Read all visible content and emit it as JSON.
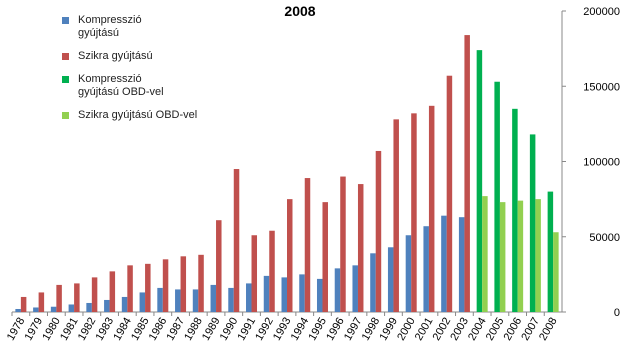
{
  "chart_data": {
    "type": "bar",
    "title": "2008",
    "categories": [
      "1978",
      "1979",
      "1980",
      "1981",
      "1982",
      "1983",
      "1984",
      "1985",
      "1986",
      "1987",
      "1988",
      "1989",
      "1990",
      "1991",
      "1992",
      "1993",
      "1994",
      "1995",
      "1996",
      "1997",
      "1998",
      "1999",
      "2000",
      "2001",
      "2002",
      "2003",
      "2004",
      "2005",
      "2006",
      "2007",
      "2008"
    ],
    "series": [
      {
        "name": "Kompresszió gyújtású",
        "color": "#4f81bd",
        "values": [
          2000,
          3000,
          3500,
          5000,
          6000,
          8000,
          10000,
          13000,
          16000,
          15000,
          15000,
          18000,
          16000,
          19000,
          24000,
          23000,
          25000,
          22000,
          29000,
          31000,
          39000,
          43000,
          51000,
          57000,
          64000,
          63000,
          null,
          null,
          null,
          null,
          null
        ]
      },
      {
        "name": "Szikra gyújtású",
        "color": "#c0504d",
        "values": [
          10000,
          13000,
          18000,
          19000,
          23000,
          27000,
          31000,
          32000,
          35000,
          37000,
          38000,
          61000,
          95000,
          51000,
          54000,
          75000,
          89000,
          73000,
          90000,
          85000,
          107000,
          128000,
          132000,
          137000,
          157000,
          184000,
          null,
          null,
          null,
          null,
          null
        ]
      },
      {
        "name": "Kompresszió gyújtású OBD-vel",
        "color": "#00b050",
        "values": [
          null,
          null,
          null,
          null,
          null,
          null,
          null,
          null,
          null,
          null,
          null,
          null,
          null,
          null,
          null,
          null,
          null,
          null,
          null,
          null,
          null,
          null,
          null,
          null,
          null,
          null,
          174000,
          153000,
          135000,
          118000,
          80000
        ]
      },
      {
        "name": "Szikra gyújtású OBD-vel",
        "color": "#92d050",
        "values": [
          null,
          null,
          null,
          null,
          null,
          null,
          null,
          null,
          null,
          null,
          null,
          null,
          null,
          null,
          null,
          null,
          null,
          null,
          null,
          null,
          null,
          null,
          null,
          null,
          null,
          null,
          77000,
          73000,
          74000,
          75000,
          53000
        ]
      }
    ],
    "ylim": [
      0,
      200000
    ],
    "yticks": [
      0,
      50000,
      100000,
      150000,
      200000
    ],
    "y_axis_side": "right",
    "grid": false
  }
}
